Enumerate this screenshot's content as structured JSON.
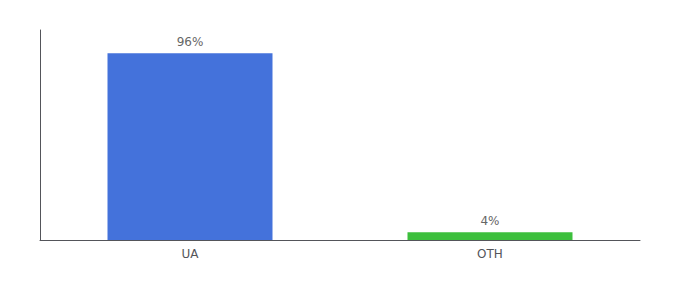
{
  "chart_data": {
    "type": "bar",
    "categories": [
      "UA",
      "OTH"
    ],
    "values": [
      96,
      4
    ],
    "value_labels": [
      "96%",
      "4%"
    ],
    "colors": [
      "#4472db",
      "#3dbf3d"
    ],
    "ylim": [
      0,
      108
    ],
    "grid": false,
    "data_labels": true,
    "tick_labels": "x"
  }
}
